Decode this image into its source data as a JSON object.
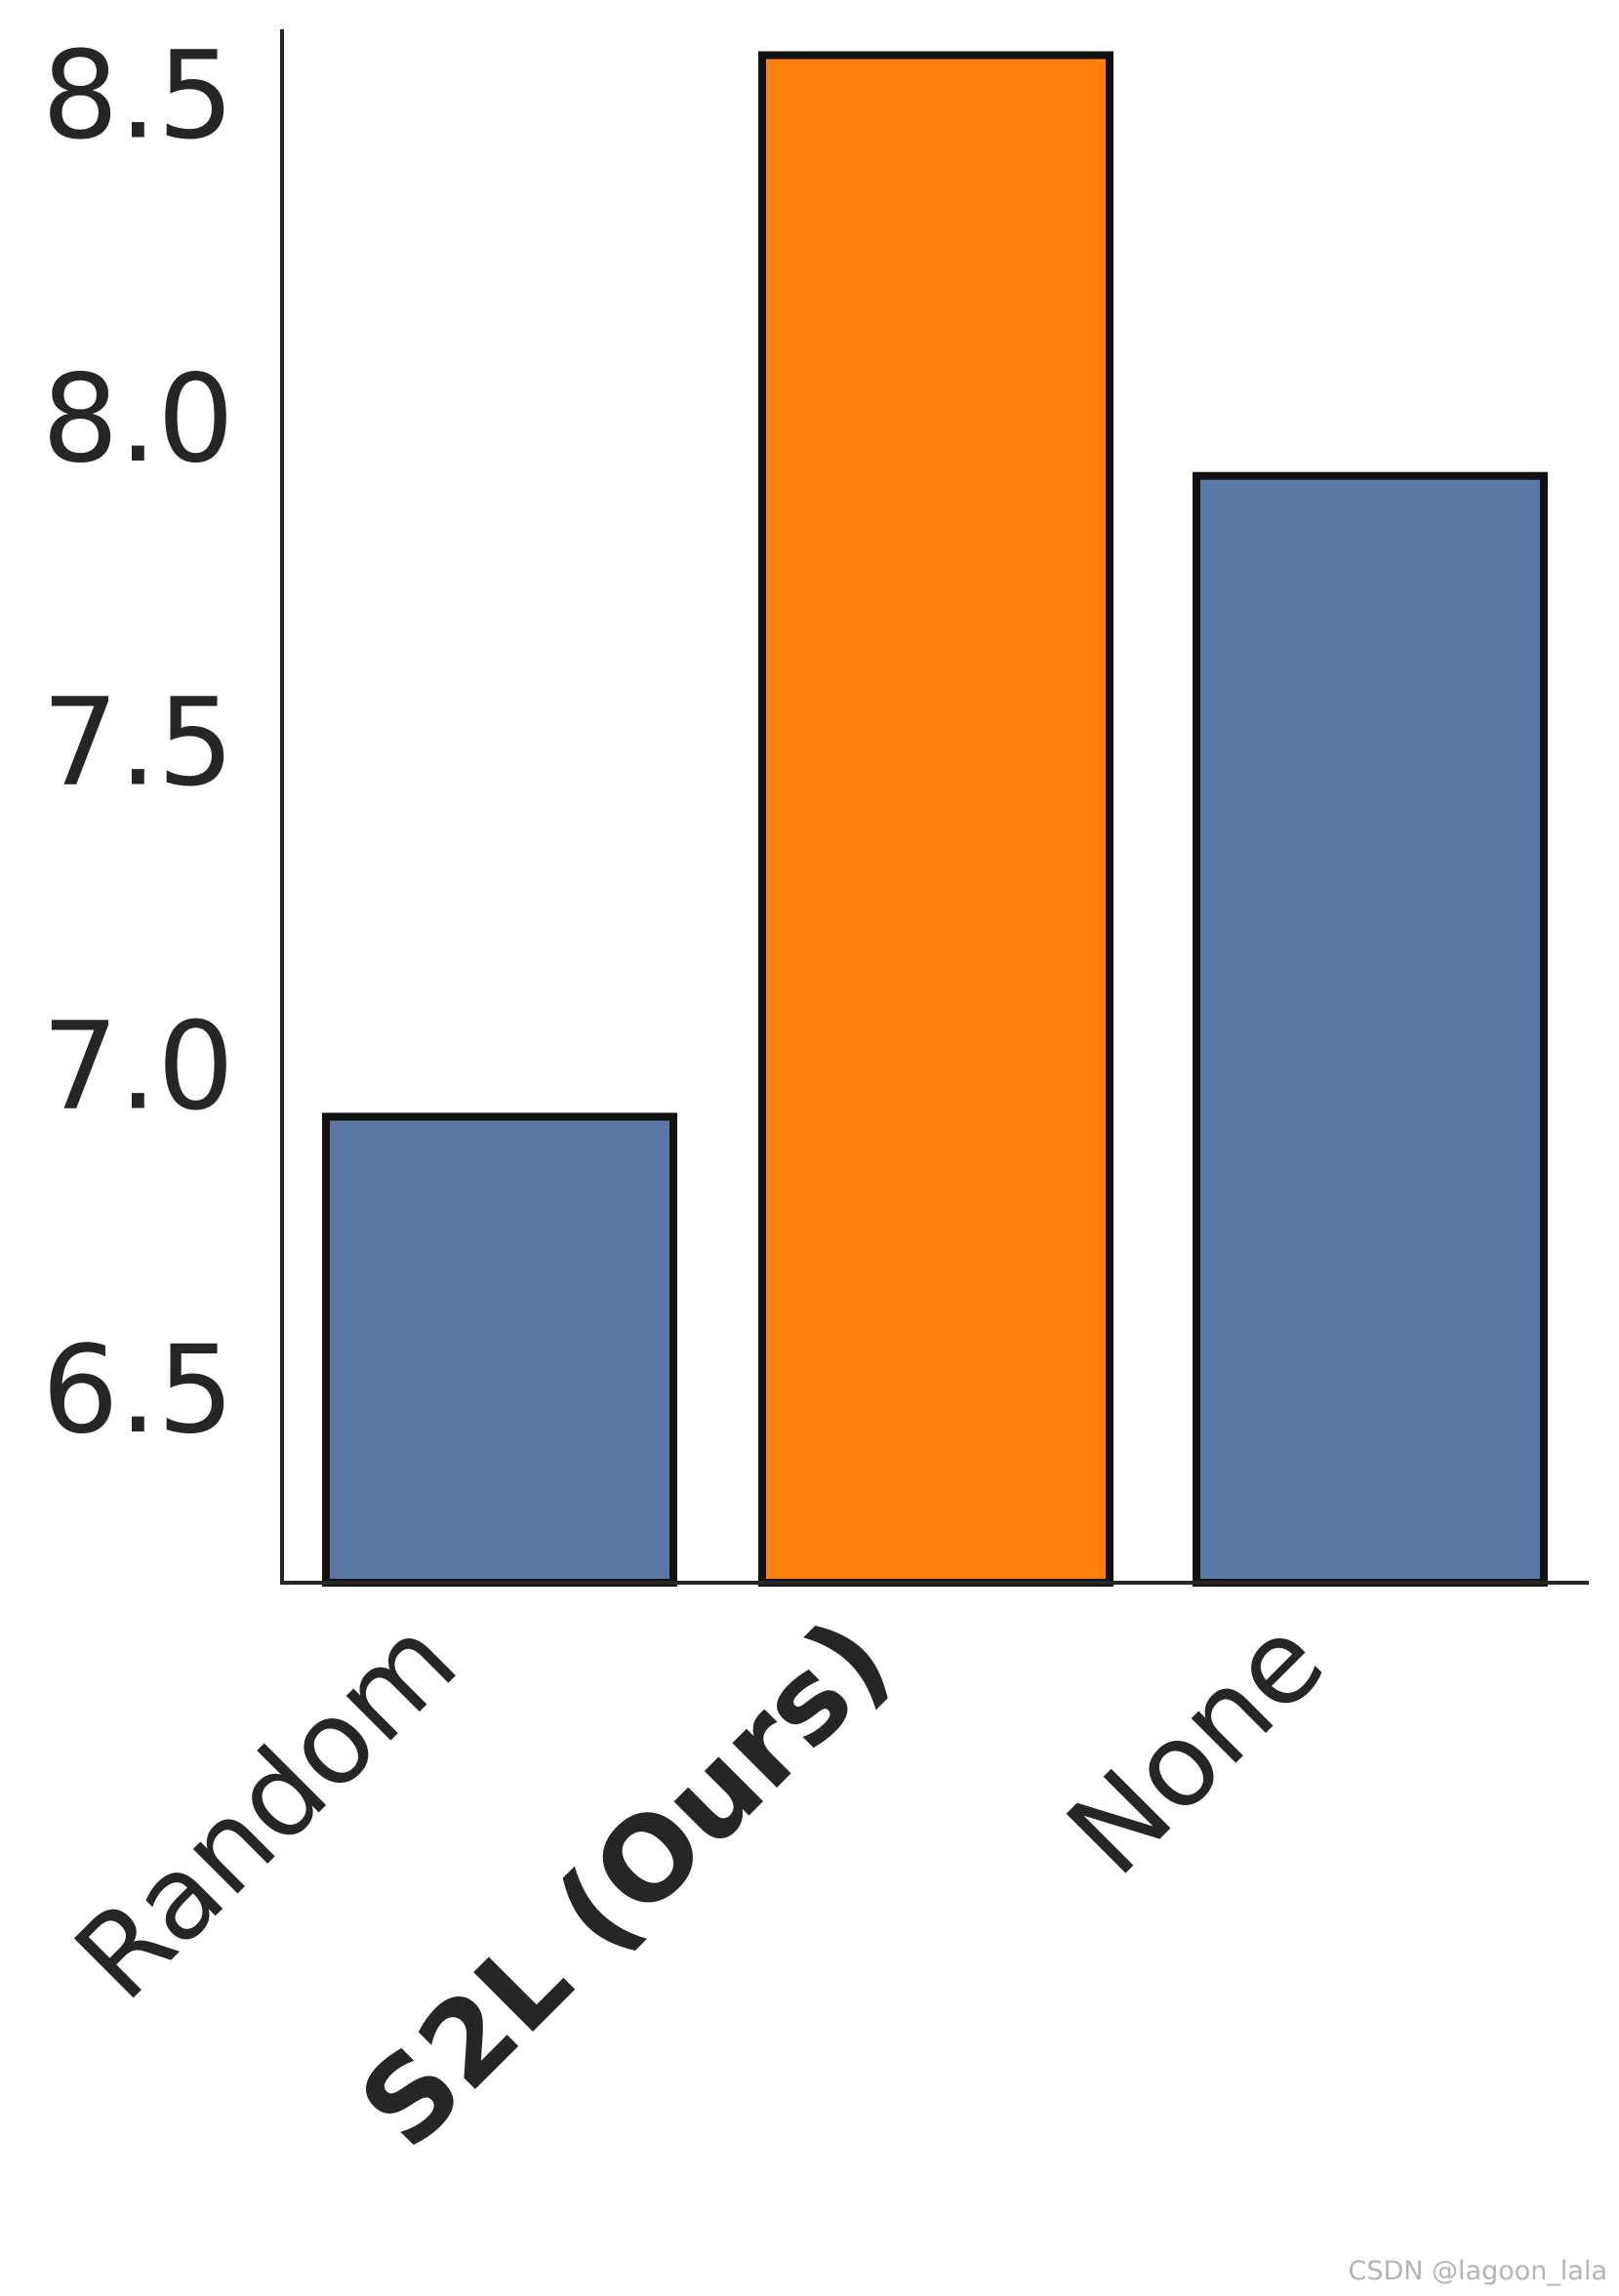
{
  "chart_data": {
    "type": "bar",
    "categories": [
      "Random",
      "S2L (Ours)",
      "None"
    ],
    "values": [
      6.92,
      8.56,
      7.91
    ],
    "highlight_index": 1,
    "colors": {
      "default_bar": "#5a76a5",
      "highlight_bar": "#ff7f0e",
      "bar_edge": "#111111",
      "axis": "#262626",
      "text": "#262626"
    },
    "ylim": [
      6.2,
      8.6
    ],
    "yticks": [
      6.5,
      7.0,
      7.5,
      8.0,
      8.5
    ],
    "ytick_labels": [
      "6.5",
      "7.0",
      "7.5",
      "8.0",
      "8.5"
    ],
    "xlabel": "",
    "ylabel": "",
    "title": "",
    "grid": false,
    "legend": false
  },
  "watermark": "CSDN @lagoon_lala"
}
